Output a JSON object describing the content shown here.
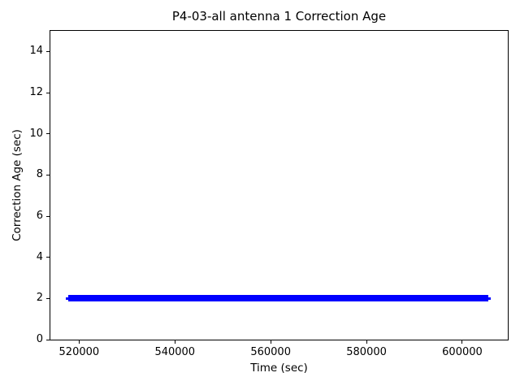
{
  "chart_data": {
    "type": "line",
    "title": "P4-03-all antenna 1 Correction Age",
    "xlabel": "Time (sec)",
    "ylabel": "Correction Age (sec)",
    "xlim": [
      514000,
      609500
    ],
    "ylim": [
      0,
      15
    ],
    "xticks": [
      520000,
      540000,
      560000,
      580000,
      600000
    ],
    "yticks": [
      0,
      2,
      4,
      6,
      8,
      10,
      12,
      14
    ],
    "grid": false,
    "legend_position": "none",
    "series": [
      {
        "name": "antenna 1 correction age",
        "color": "#0000ff",
        "marker": "+",
        "x": [
          517800,
          605400
        ],
        "y": [
          2,
          2
        ],
        "description": "dense horizontal band of samples, constant at 2 sec from ~517800 s to ~605400 s"
      }
    ]
  }
}
